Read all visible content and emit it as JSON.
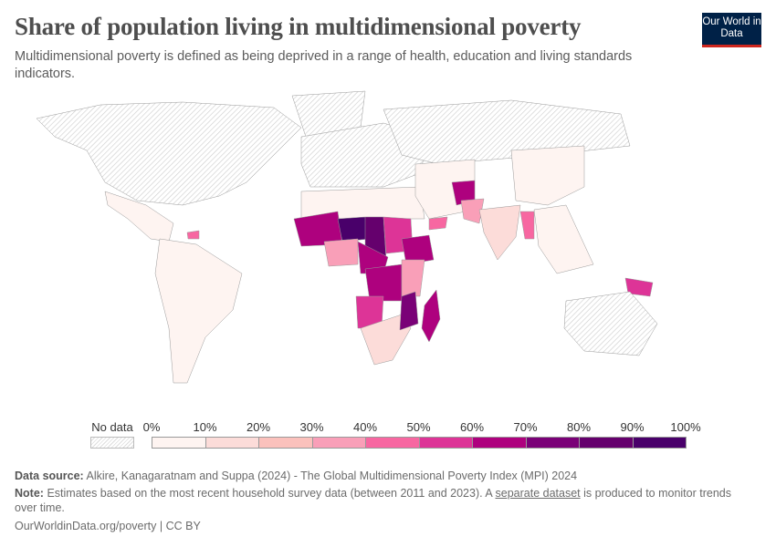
{
  "header": {
    "title": "Share of population living in multidimensional poverty",
    "subtitle": "Multidimensional poverty is defined as being deprived in a range of health, education and living standards indicators.",
    "logo": "Our World in Data"
  },
  "legend": {
    "no_data_label": "No data",
    "ticks": [
      "0%",
      "10%",
      "20%",
      "30%",
      "40%",
      "50%",
      "60%",
      "70%",
      "80%",
      "90%",
      "100%"
    ],
    "colors": [
      "#fef4f1",
      "#fcdcd9",
      "#fbc1bc",
      "#f99fb8",
      "#f767a1",
      "#dd3497",
      "#ae017e",
      "#7a0177",
      "#65006d",
      "#49006a"
    ]
  },
  "chart_data": {
    "type": "choropleth",
    "unit": "%",
    "range": [
      0,
      100
    ],
    "regions": [
      {
        "name": "North America",
        "value": null
      },
      {
        "name": "Greenland",
        "value": null
      },
      {
        "name": "Mexico & Central America",
        "value": 3
      },
      {
        "name": "Haiti",
        "value": 45
      },
      {
        "name": "South America",
        "value": 4
      },
      {
        "name": "Europe",
        "value": null
      },
      {
        "name": "Russia",
        "value": null
      },
      {
        "name": "North Africa",
        "value": 2
      },
      {
        "name": "West Africa (Mali, Burkina Faso)",
        "value": 65
      },
      {
        "name": "Niger",
        "value": 90
      },
      {
        "name": "Chad",
        "value": 85
      },
      {
        "name": "Sudan",
        "value": 55
      },
      {
        "name": "Ethiopia",
        "value": 68
      },
      {
        "name": "Nigeria",
        "value": 35
      },
      {
        "name": "Central Africa",
        "value": 62
      },
      {
        "name": "DR Congo",
        "value": 65
      },
      {
        "name": "Kenya/East Africa",
        "value": 35
      },
      {
        "name": "Angola",
        "value": 50
      },
      {
        "name": "Southern Africa",
        "value": 10
      },
      {
        "name": "Madagascar",
        "value": 68
      },
      {
        "name": "Mozambique",
        "value": 72
      },
      {
        "name": "Middle East",
        "value": 2
      },
      {
        "name": "Yemen",
        "value": 40
      },
      {
        "name": "Afghanistan",
        "value": 62
      },
      {
        "name": "Pakistan",
        "value": 38
      },
      {
        "name": "India",
        "value": 16
      },
      {
        "name": "Myanmar",
        "value": 40
      },
      {
        "name": "China",
        "value": 4
      },
      {
        "name": "Southeast Asia",
        "value": 5
      },
      {
        "name": "Papua New Guinea",
        "value": 56
      },
      {
        "name": "Australia",
        "value": null
      }
    ]
  },
  "footer": {
    "source_label": "Data source:",
    "source": "Alkire, Kanagaratnam and Suppa (2024) - The Global Multidimensional Poverty Index (MPI) 2024",
    "note_label": "Note:",
    "note_a": "Estimates based on the most recent household survey data (between 2011 and 2023). A ",
    "note_link": "separate dataset",
    "note_b": " is produced to monitor trends over time.",
    "url": "OurWorldinData.org/poverty | CC BY"
  }
}
